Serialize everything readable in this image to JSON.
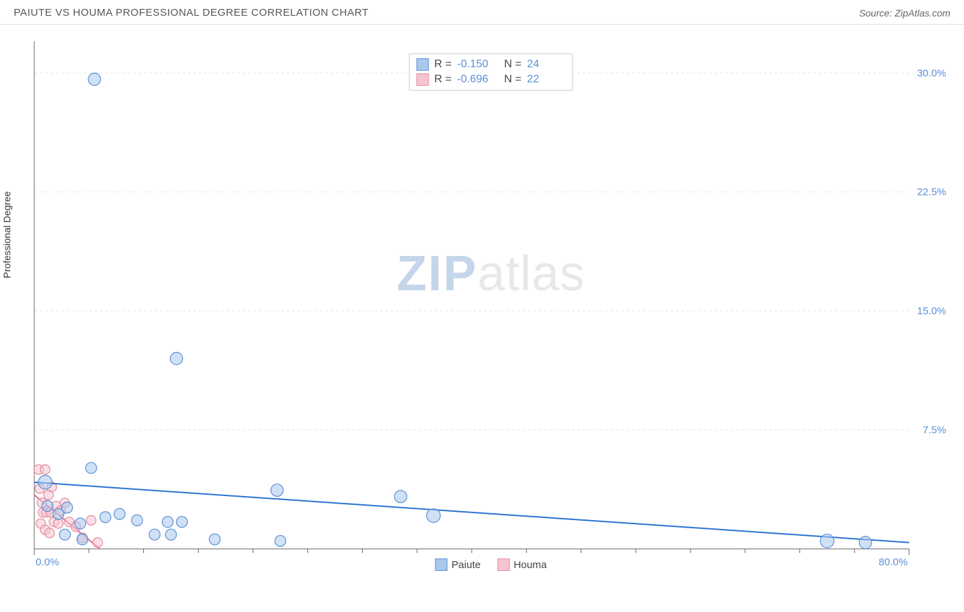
{
  "header": {
    "title": "PAIUTE VS HOUMA PROFESSIONAL DEGREE CORRELATION CHART",
    "source": "Source: ZipAtlas.com"
  },
  "y_axis_label": "Professional Degree",
  "watermark": {
    "part1": "ZIP",
    "part2": "atlas"
  },
  "chart": {
    "type": "scatter",
    "background_color": "#ffffff",
    "grid_color": "#e5e5e5",
    "axis_line_color": "#666666",
    "xlim": [
      0,
      80
    ],
    "ylim": [
      0,
      32
    ],
    "x_ticks": [
      0,
      80
    ],
    "x_tick_labels": [
      "0.0%",
      "80.0%"
    ],
    "x_minor_ticks": [
      5,
      10,
      15,
      20,
      25,
      30,
      35,
      40,
      45,
      50,
      55,
      60,
      65,
      70,
      75
    ],
    "y_ticks": [
      7.5,
      15.0,
      22.5,
      30.0
    ],
    "y_tick_labels": [
      "7.5%",
      "15.0%",
      "22.5%",
      "30.0%"
    ],
    "y_tick_color": "#5b8fd6",
    "x_tick_color": "#5b8fd6",
    "series": [
      {
        "name": "Paiute",
        "fill_color": "#a9c8ec",
        "stroke_color": "#5b8fd6",
        "fill_opacity": 0.55,
        "marker_radius": 8,
        "trend": {
          "x1": 0,
          "y1": 4.2,
          "x2": 80,
          "y2": 0.4,
          "color": "#2b74d1",
          "width": 2
        },
        "stats": {
          "R": "-0.150",
          "N": "24"
        },
        "points": [
          {
            "x": 5.5,
            "y": 29.6,
            "r": 9
          },
          {
            "x": 13.0,
            "y": 12.0,
            "r": 9
          },
          {
            "x": 1.0,
            "y": 4.2,
            "r": 10
          },
          {
            "x": 5.2,
            "y": 5.1,
            "r": 8
          },
          {
            "x": 22.2,
            "y": 3.7,
            "r": 9
          },
          {
            "x": 33.5,
            "y": 3.3,
            "r": 9
          },
          {
            "x": 3.0,
            "y": 2.6,
            "r": 8
          },
          {
            "x": 1.2,
            "y": 2.7,
            "r": 8
          },
          {
            "x": 2.2,
            "y": 2.2,
            "r": 8
          },
          {
            "x": 4.2,
            "y": 1.6,
            "r": 8
          },
          {
            "x": 6.5,
            "y": 2.0,
            "r": 8
          },
          {
            "x": 7.8,
            "y": 2.2,
            "r": 8
          },
          {
            "x": 9.4,
            "y": 1.8,
            "r": 8
          },
          {
            "x": 12.2,
            "y": 1.7,
            "r": 8
          },
          {
            "x": 13.5,
            "y": 1.7,
            "r": 8
          },
          {
            "x": 11.0,
            "y": 0.9,
            "r": 8
          },
          {
            "x": 12.5,
            "y": 0.9,
            "r": 8
          },
          {
            "x": 16.5,
            "y": 0.6,
            "r": 8
          },
          {
            "x": 22.5,
            "y": 0.5,
            "r": 8
          },
          {
            "x": 36.5,
            "y": 2.1,
            "r": 10
          },
          {
            "x": 2.8,
            "y": 0.9,
            "r": 8
          },
          {
            "x": 4.4,
            "y": 0.6,
            "r": 8
          },
          {
            "x": 72.5,
            "y": 0.5,
            "r": 10
          },
          {
            "x": 76.0,
            "y": 0.4,
            "r": 9
          }
        ]
      },
      {
        "name": "Houma",
        "fill_color": "#f6c4cf",
        "stroke_color": "#e48aa0",
        "fill_opacity": 0.55,
        "marker_radius": 7,
        "trend": {
          "x1": 0,
          "y1": 3.4,
          "x2": 6.0,
          "y2": 0.0,
          "color": "#e26a87",
          "width": 2
        },
        "stats": {
          "R": "-0.696",
          "N": "22"
        },
        "points": [
          {
            "x": 0.4,
            "y": 5.0,
            "r": 7
          },
          {
            "x": 0.5,
            "y": 3.8,
            "r": 7
          },
          {
            "x": 1.0,
            "y": 5.0,
            "r": 7
          },
          {
            "x": 0.7,
            "y": 2.9,
            "r": 7
          },
          {
            "x": 1.3,
            "y": 3.4,
            "r": 7
          },
          {
            "x": 1.6,
            "y": 3.9,
            "r": 7
          },
          {
            "x": 0.8,
            "y": 2.3,
            "r": 7
          },
          {
            "x": 1.1,
            "y": 2.3,
            "r": 7
          },
          {
            "x": 1.5,
            "y": 2.3,
            "r": 7
          },
          {
            "x": 2.0,
            "y": 2.7,
            "r": 7
          },
          {
            "x": 2.4,
            "y": 2.4,
            "r": 7
          },
          {
            "x": 2.8,
            "y": 2.9,
            "r": 7
          },
          {
            "x": 1.8,
            "y": 1.7,
            "r": 7
          },
          {
            "x": 2.2,
            "y": 1.6,
            "r": 7
          },
          {
            "x": 0.6,
            "y": 1.6,
            "r": 7
          },
          {
            "x": 1.0,
            "y": 1.2,
            "r": 7
          },
          {
            "x": 1.4,
            "y": 1.0,
            "r": 7
          },
          {
            "x": 3.2,
            "y": 1.7,
            "r": 7
          },
          {
            "x": 3.8,
            "y": 1.4,
            "r": 7
          },
          {
            "x": 5.2,
            "y": 1.8,
            "r": 7
          },
          {
            "x": 4.4,
            "y": 0.7,
            "r": 7
          },
          {
            "x": 5.8,
            "y": 0.4,
            "r": 7
          }
        ]
      }
    ]
  },
  "legend": {
    "items": [
      {
        "label": "Paiute",
        "fill": "#a9c8ec",
        "stroke": "#5b8fd6"
      },
      {
        "label": "Houma",
        "fill": "#f6c4cf",
        "stroke": "#e48aa0"
      }
    ]
  }
}
